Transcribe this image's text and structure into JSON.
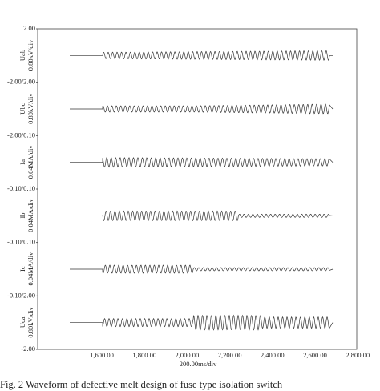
{
  "figure": {
    "panels": [
      {
        "label": "Uab",
        "scale": "0.80kV/div"
      },
      {
        "label": "Ubc",
        "scale": "0.80kV/div"
      },
      {
        "label": "Ia",
        "scale": "0.04MA/div"
      },
      {
        "label": "Ib",
        "scale": "0.04MA/div"
      },
      {
        "label": "Ic",
        "scale": "0.04MA/div"
      },
      {
        "label": "Uca",
        "scale": "0.80kV/div"
      }
    ],
    "boundary_labels": [
      "2.00",
      "-2.00/2.00",
      "-2.00/0.10",
      "-0.10/0.10",
      "-0.10/0.10",
      "-0.10/2.00",
      "-2.00"
    ],
    "x_ticks": [
      "1,600.00",
      "1,800.00",
      "2,000.00",
      "2,200.00",
      "2,400.00",
      "2,600.00",
      "2,800.00"
    ],
    "x_label": "200.00ms/div",
    "caption": "Fig. 2   Waveform of defective melt design of fuse type isolation switch"
  }
}
